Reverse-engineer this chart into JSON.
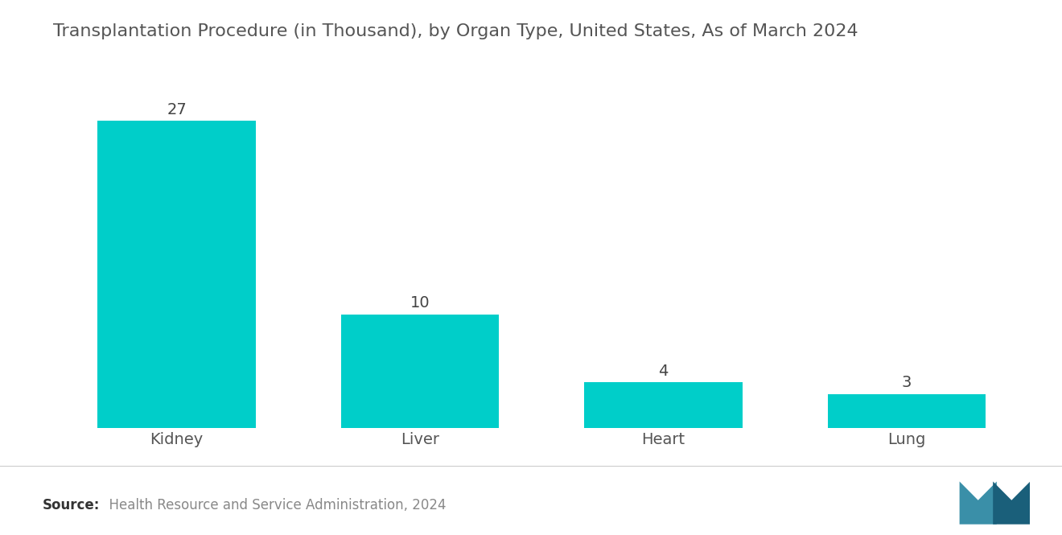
{
  "title": "Transplantation Procedure (in Thousand), by Organ Type, United States, As of March 2024",
  "categories": [
    "Kidney",
    "Liver",
    "Heart",
    "Lung"
  ],
  "values": [
    27,
    10,
    4,
    3
  ],
  "bar_color": "#00CEC9",
  "title_fontsize": 16,
  "value_fontsize": 14,
  "tick_fontsize": 14,
  "ylim": [
    0,
    32
  ],
  "background_color": "#ffffff",
  "source_bold": "Source:",
  "source_text": "  Health Resource and Service Administration, 2024",
  "source_fontsize": 12,
  "title_color": "#555555",
  "tick_color": "#555555",
  "source_color": "#888888",
  "bar_width": 0.65,
  "separator_color": "#cccccc",
  "value_color": "#444444"
}
